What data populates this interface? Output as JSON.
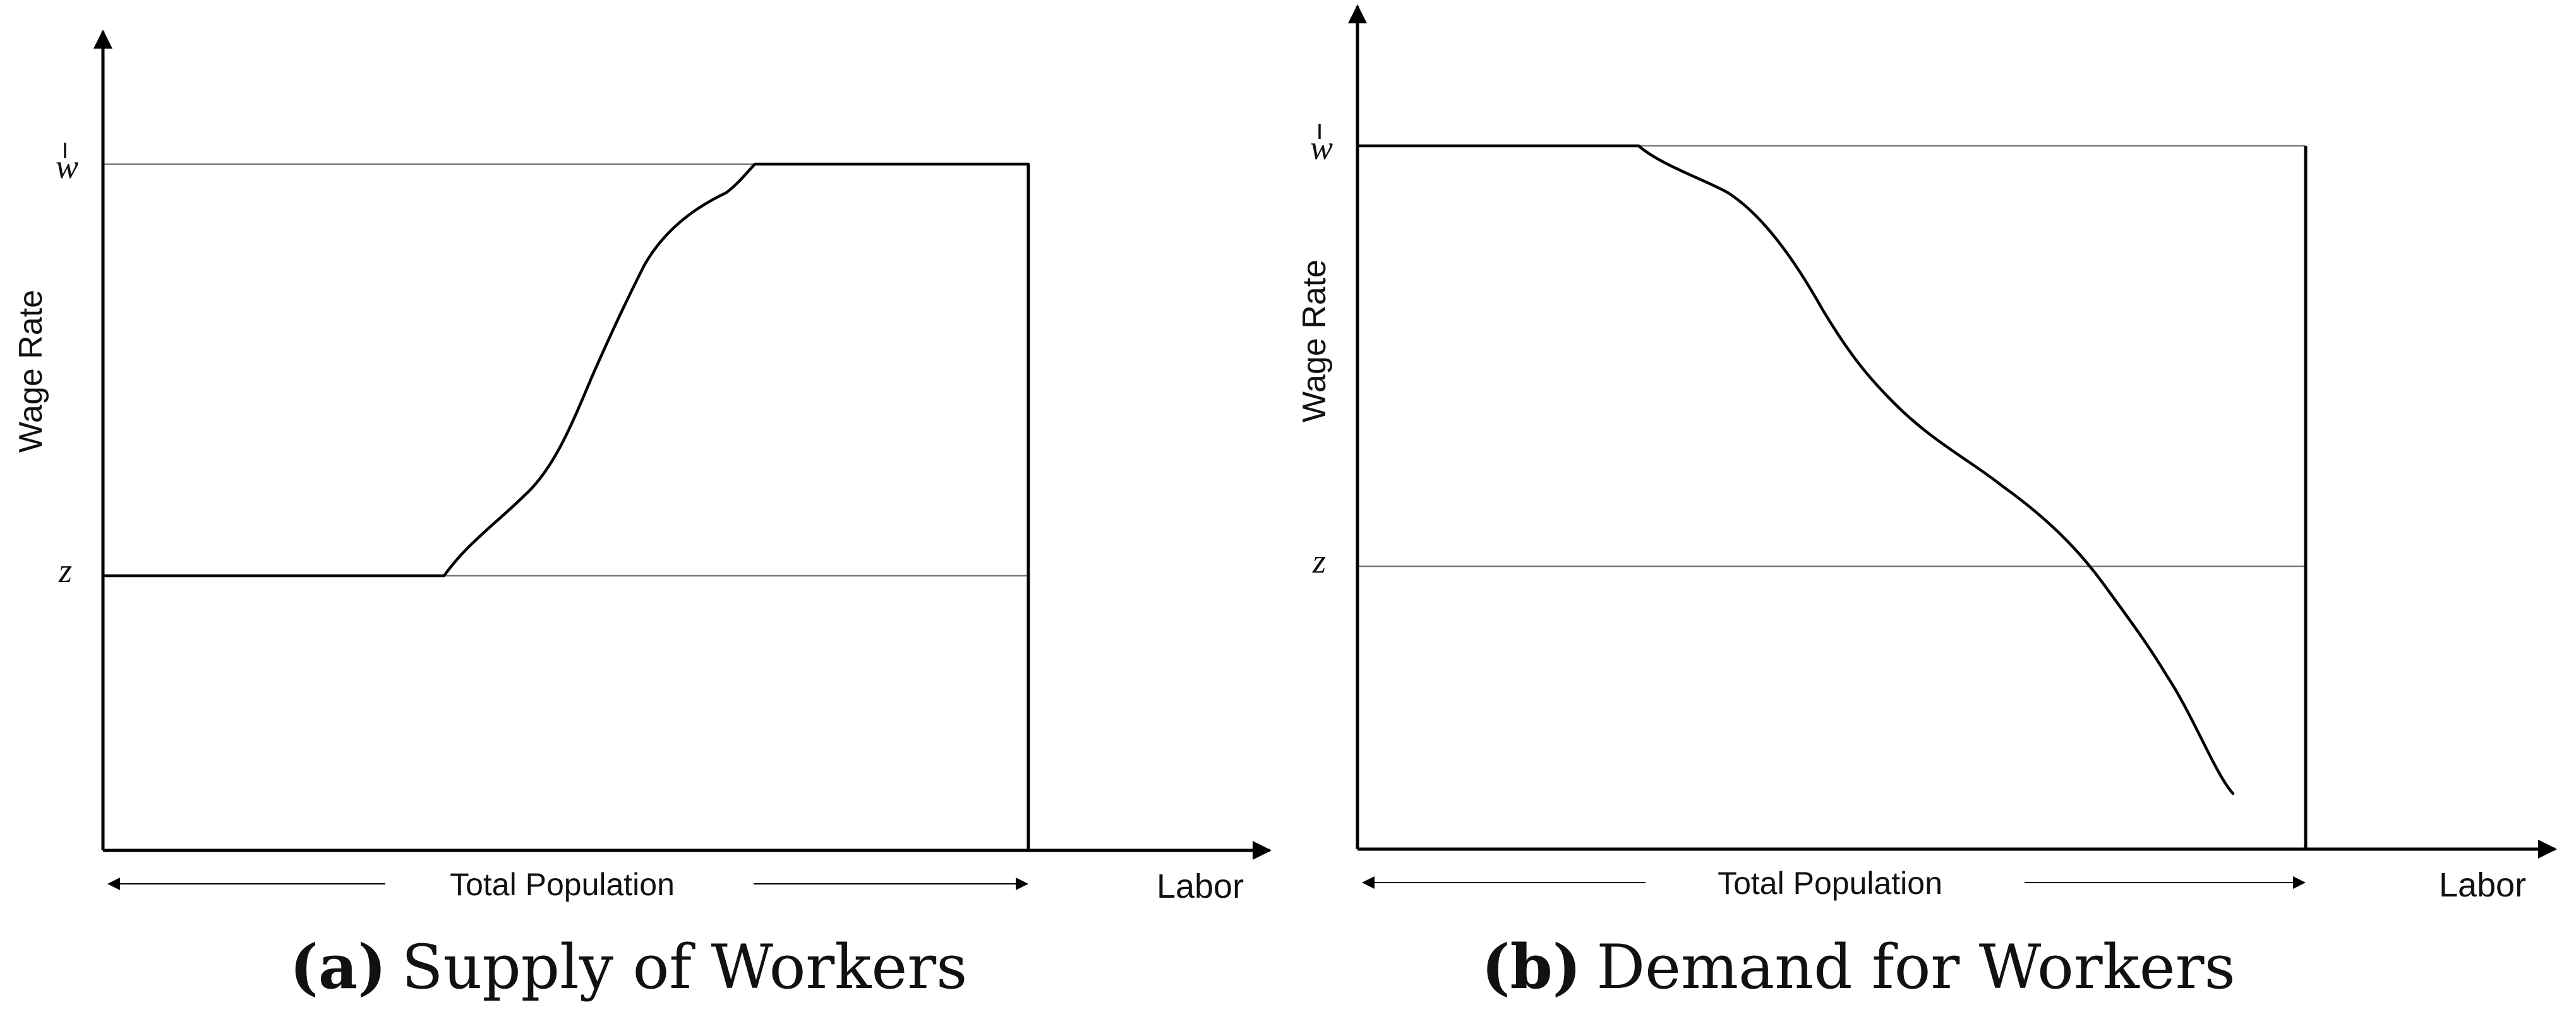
{
  "panels": [
    {
      "tag": "(a)",
      "title": "Supply of Workers",
      "y_axis_label": "Wage Rate",
      "x_axis_label": "Labor",
      "span_label": "Total Population",
      "high_wage_label": "w",
      "low_wage_label": "z",
      "curve": "upward-sloping"
    },
    {
      "tag": "(b)",
      "title": "Demand for Workers",
      "y_axis_label": "Wage Rate",
      "x_axis_label": "Labor",
      "span_label": "Total Population",
      "high_wage_label": "w",
      "low_wage_label": "z",
      "curve": "downward-sloping"
    }
  ]
}
